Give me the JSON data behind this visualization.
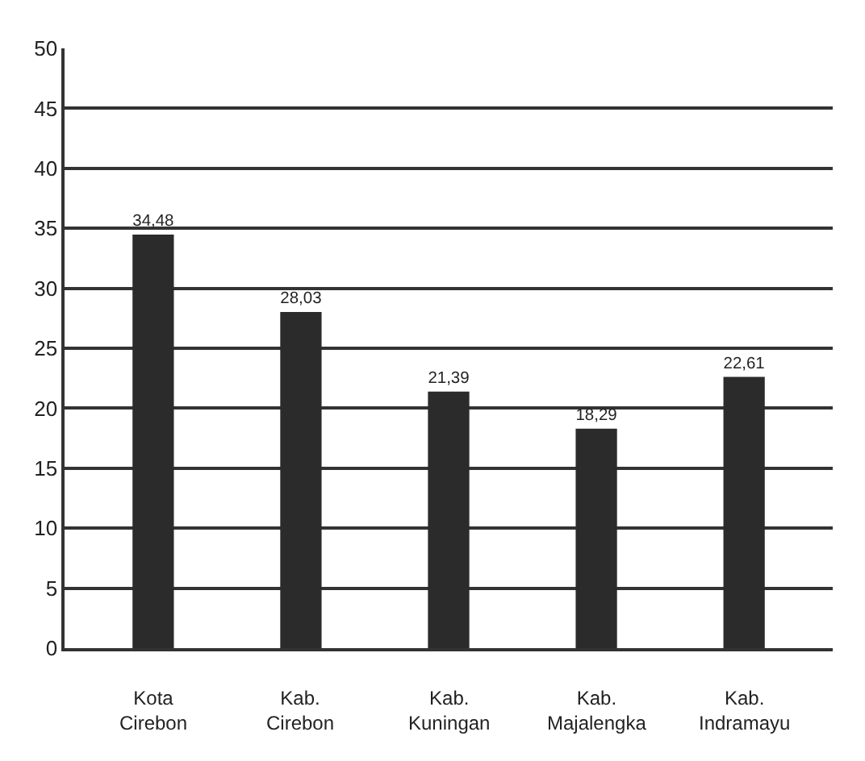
{
  "chart_data": {
    "type": "bar",
    "categories": [
      "Kota\nCirebon",
      "Kab.\nCirebon",
      "Kab.\nKuningan",
      "Kab.\nMajalengka",
      "Kab.\nIndramayu"
    ],
    "values": [
      34.48,
      28.03,
      21.39,
      18.29,
      22.61
    ],
    "value_labels": [
      "34,48",
      "28,03",
      "21,39",
      "18,29",
      "22,61"
    ],
    "color": "#2b2b2b",
    "ylim": [
      0,
      50
    ],
    "yticks": [
      0,
      5,
      10,
      15,
      20,
      25,
      30,
      35,
      40,
      45,
      50
    ],
    "grid": "y"
  }
}
